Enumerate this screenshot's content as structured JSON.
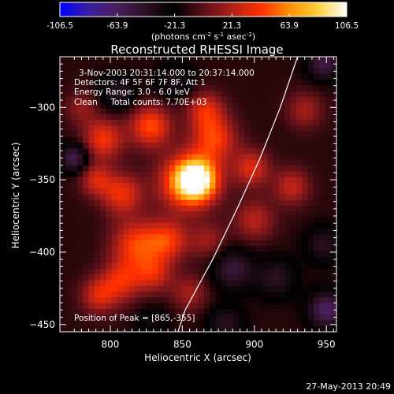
{
  "colorbar": {
    "colors": [
      "#0000ff",
      "#3b1fa0",
      "#4a1f5a",
      "#2a1020",
      "#000000",
      "#5a1018",
      "#b0201a",
      "#ff3000",
      "#ff9000",
      "#ffd040",
      "#ffffff"
    ],
    "ticks": [
      "-106.5",
      "-63.9",
      "-21.3",
      "21.3",
      "63.9",
      "106.5"
    ],
    "unit_prefix": "(photons cm",
    "unit_exp1": "-2",
    "unit_mid": " s",
    "unit_exp2": "-1",
    "unit_mid2": " asec",
    "unit_exp3": "-2",
    "unit_suffix": ")"
  },
  "chart_data": {
    "type": "heatmap",
    "title": "Reconstructed RHESSI Image",
    "xlabel": "Heliocentric X (arcsec)",
    "ylabel": "Heliocentric Y (arcsec)",
    "xlim": [
      765,
      957
    ],
    "ylim": [
      -455,
      -265
    ],
    "xticks": [
      800,
      850,
      900,
      950
    ],
    "yticks": [
      -300,
      -350,
      -400,
      -450
    ],
    "value_range": [
      -106.5,
      106.5
    ],
    "peak": [
      865,
      -355
    ],
    "annotations": [
      "3-Nov-2003 20:31:14.000 to 20:37:14.000",
      "Detectors: 4F 5F 6F 7F 8F, Att 1",
      "Energy Range: 3.0 - 6.0 keV",
      "Clean     Total counts: 7.70E+03"
    ],
    "peak_label": "Position of Peak = [865,-355]",
    "blobs": [
      {
        "x": 860,
        "y": -350,
        "v": 106,
        "s": 10
      },
      {
        "x": 852,
        "y": -352,
        "v": 60,
        "s": 14
      },
      {
        "x": 828,
        "y": -313,
        "v": 60,
        "s": 10
      },
      {
        "x": 872,
        "y": -322,
        "v": 55,
        "s": 11
      },
      {
        "x": 866,
        "y": -302,
        "v": 45,
        "s": 9
      },
      {
        "x": 795,
        "y": -322,
        "v": 52,
        "s": 10
      },
      {
        "x": 808,
        "y": -360,
        "v": 50,
        "s": 10
      },
      {
        "x": 790,
        "y": -350,
        "v": 40,
        "s": 8
      },
      {
        "x": 818,
        "y": -395,
        "v": 55,
        "s": 12
      },
      {
        "x": 840,
        "y": -392,
        "v": 50,
        "s": 10
      },
      {
        "x": 808,
        "y": -420,
        "v": 45,
        "s": 10
      },
      {
        "x": 792,
        "y": -430,
        "v": 42,
        "s": 9
      },
      {
        "x": 830,
        "y": -415,
        "v": 40,
        "s": 9
      },
      {
        "x": 898,
        "y": -342,
        "v": 45,
        "s": 9
      },
      {
        "x": 900,
        "y": -378,
        "v": 35,
        "s": 10
      },
      {
        "x": 926,
        "y": -355,
        "v": 38,
        "s": 9
      },
      {
        "x": 935,
        "y": -302,
        "v": 30,
        "s": 9
      },
      {
        "x": 868,
        "y": -392,
        "v": 28,
        "s": 9
      },
      {
        "x": 855,
        "y": -428,
        "v": 30,
        "s": 9
      },
      {
        "x": 780,
        "y": -300,
        "v": 25,
        "s": 8
      },
      {
        "x": 805,
        "y": -290,
        "v": -30,
        "s": 9
      },
      {
        "x": 845,
        "y": -282,
        "v": -25,
        "s": 9
      },
      {
        "x": 775,
        "y": -335,
        "v": -50,
        "s": 7
      },
      {
        "x": 885,
        "y": -412,
        "v": -40,
        "s": 10
      },
      {
        "x": 915,
        "y": -418,
        "v": -30,
        "s": 10
      },
      {
        "x": 950,
        "y": -440,
        "v": -55,
        "s": 9
      },
      {
        "x": 948,
        "y": -270,
        "v": -45,
        "s": 8
      },
      {
        "x": 948,
        "y": -395,
        "v": -30,
        "s": 9
      },
      {
        "x": 830,
        "y": -448,
        "v": -20,
        "s": 8
      },
      {
        "x": 880,
        "y": -450,
        "v": -30,
        "s": 9
      }
    ],
    "limb_curve": [
      [
        930,
        -265
      ],
      [
        918,
        -300
      ],
      [
        904,
        -335
      ],
      [
        888,
        -370
      ],
      [
        871,
        -405
      ],
      [
        852,
        -440
      ],
      [
        847,
        -455
      ]
    ]
  },
  "footer": {
    "timestamp": "27-May-2013 20:49"
  }
}
